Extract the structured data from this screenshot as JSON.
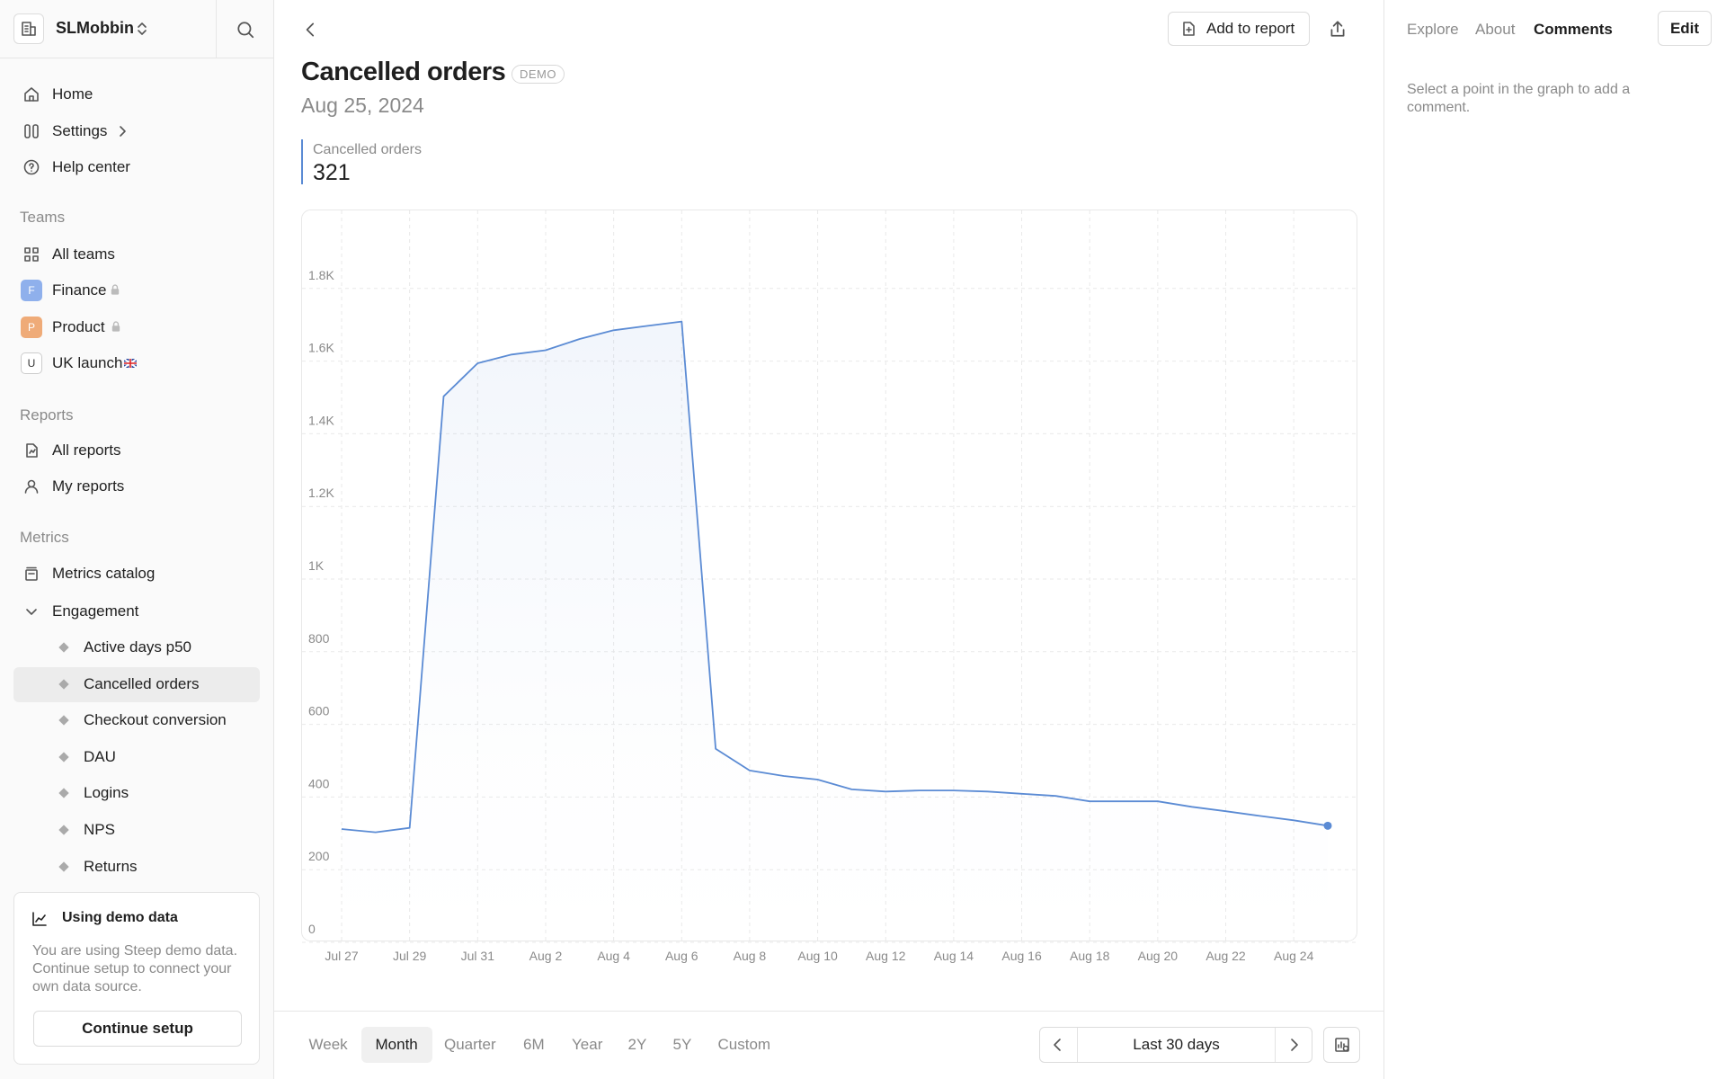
{
  "sidebar": {
    "workspace": "SLMobbin",
    "nav": [
      "Home",
      "Settings",
      "Help center"
    ],
    "teams": {
      "title": "Teams",
      "items": [
        {
          "label": "All teams"
        },
        {
          "badge": "F",
          "label": "Finance"
        },
        {
          "badge": "P",
          "label": "Product"
        },
        {
          "badge": "U",
          "label": "UK launch"
        }
      ]
    },
    "reports": {
      "title": "Reports",
      "items": [
        "All reports",
        "My reports"
      ]
    },
    "metrics": {
      "title": "Metrics",
      "catalog": "Metrics catalog",
      "group": "Engagement",
      "items": [
        "Active days p50",
        "Cancelled orders",
        "Checkout conversion",
        "DAU",
        "Logins",
        "NPS",
        "Returns"
      ],
      "selected": 1
    },
    "demo_card": {
      "title": "Using demo data",
      "text": "You are using Steep demo data. Continue setup to connect your own data source.",
      "button": "Continue setup"
    }
  },
  "toolbar": {
    "add_to_report": "Add to report"
  },
  "header": {
    "title": "Cancelled orders",
    "badge": "DEMO",
    "date": "Aug 25, 2024"
  },
  "chart_data": {
    "type": "line",
    "categories": [
      "Jul 27",
      null,
      "Jul 29",
      null,
      "Jul 31",
      null,
      "Aug 2",
      null,
      "Aug 4",
      null,
      "Aug 6",
      null,
      "Aug 8",
      null,
      "Aug 10",
      null,
      "Aug 12",
      null,
      "Aug 14",
      null,
      "Aug 16",
      null,
      "Aug 18",
      null,
      "Aug 20",
      null,
      "Aug 22",
      null,
      "Aug 24",
      null
    ],
    "series": [
      {
        "name": "Cancelled orders",
        "color": "#5b8bd4",
        "values": [
          312,
          303,
          315,
          1503,
          1594,
          1618,
          1630,
          1661,
          1685,
          1697,
          1709,
          533,
          473,
          458,
          448,
          421,
          415,
          418,
          418,
          415,
          409,
          403,
          388,
          388,
          388,
          373,
          361,
          348,
          336,
          321
        ]
      }
    ],
    "ylim": [
      0,
      2000
    ],
    "yticks": [
      0,
      200,
      400,
      600,
      800,
      {
        "value": 1000,
        "label": "1K"
      },
      {
        "value": 1200,
        "label": "1.2K"
      },
      {
        "value": 1400,
        "label": "1.4K"
      },
      {
        "value": 1600,
        "label": "1.6K"
      },
      {
        "value": 1800,
        "label": "1.8K"
      }
    ],
    "grid": true
  },
  "period_bar": {
    "periods": [
      "Week",
      "Month",
      "Quarter",
      "6M",
      "Year",
      "2Y",
      "5Y",
      "Custom"
    ],
    "selected": 1,
    "range": "Last 30 days"
  },
  "panel": {
    "tabs": [
      "Explore",
      "About",
      "Comments"
    ],
    "active": 2,
    "edit": "Edit",
    "hint": "Select a point in the graph to add a comment."
  }
}
